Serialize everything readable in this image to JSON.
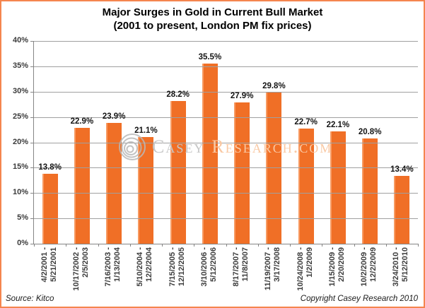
{
  "frame": {
    "border_color": "#f5854e",
    "background": "#ffffff"
  },
  "title": {
    "line1": "Major Surges in Gold in Current Bull Market",
    "line2": "(2001 to present, London PM fix prices)"
  },
  "chart_data": {
    "type": "bar",
    "title": "Major Surges in Gold in Current Bull Market (2001 to present, London PM fix prices)",
    "categories": [
      "4/2/2001 - 5/21/2001",
      "10/17/2002 - 2/5/2003",
      "7/16/2003 - 1/13/2004",
      "5/10/2004 - 12/2/2004",
      "7/15/2005 - 12/12/2005",
      "3/10/2006 - 5/12/2006",
      "8/17/2007 - 11/8/2007",
      "11/19/2007 - 3/17/2008",
      "10/24/2008 - 1/2/2009",
      "1/15/2009 - 2/20/2009",
      "10/2/2009 - 12/2/2009",
      "3/24/2010 - 5/12/2010"
    ],
    "category_lines": [
      [
        "4/2/2001 -",
        "5/21/2001"
      ],
      [
        "10/17/2002 -",
        "2/5/2003"
      ],
      [
        "7/16/2003 -",
        "1/13/2004"
      ],
      [
        "5/10/2004 -",
        "12/2/2004"
      ],
      [
        "7/15/2005 -",
        "12/12/2005"
      ],
      [
        "3/10/2006 -",
        "5/12/2006"
      ],
      [
        "8/17/2007 -",
        "11/8/2007"
      ],
      [
        "11/19/2007 -",
        "3/17/2008"
      ],
      [
        "10/24/2008 -",
        "1/2/2009"
      ],
      [
        "1/15/2009 -",
        "2/20/2009"
      ],
      [
        "10/2/2009 -",
        "12/2/2009"
      ],
      [
        "3/24/2010 -",
        "5/12/2010"
      ]
    ],
    "values": [
      13.8,
      22.9,
      23.9,
      21.1,
      28.2,
      35.5,
      27.9,
      29.8,
      22.7,
      22.1,
      20.8,
      13.4
    ],
    "value_labels": [
      "13.8%",
      "22.9%",
      "23.9%",
      "21.1%",
      "28.2%",
      "35.5%",
      "27.9%",
      "29.8%",
      "22.7%",
      "22.1%",
      "20.8%",
      "13.4%"
    ],
    "xlabel": "",
    "ylabel": "",
    "ylim": [
      0,
      40
    ],
    "ytick_step": 5,
    "ytick_labels": [
      "0%",
      "5%",
      "10%",
      "15%",
      "20%",
      "25%",
      "30%",
      "35%",
      "40%"
    ],
    "grid": true,
    "legend": false,
    "bar_color": "#f06f26",
    "bar_highlight_color": "#f89a61",
    "gridline_color": "#a0a0a0",
    "axis_color": "#858585"
  },
  "watermark": {
    "logo": "concentric-rings-logo",
    "text_gray": "Casey",
    "text_orange": "Research.com",
    "gray_color": "#c6c6c6",
    "orange_color": "#f9c9a4"
  },
  "footer": {
    "source": "Source: Kitco",
    "copyright": "Copyright Casey Research 2010"
  }
}
